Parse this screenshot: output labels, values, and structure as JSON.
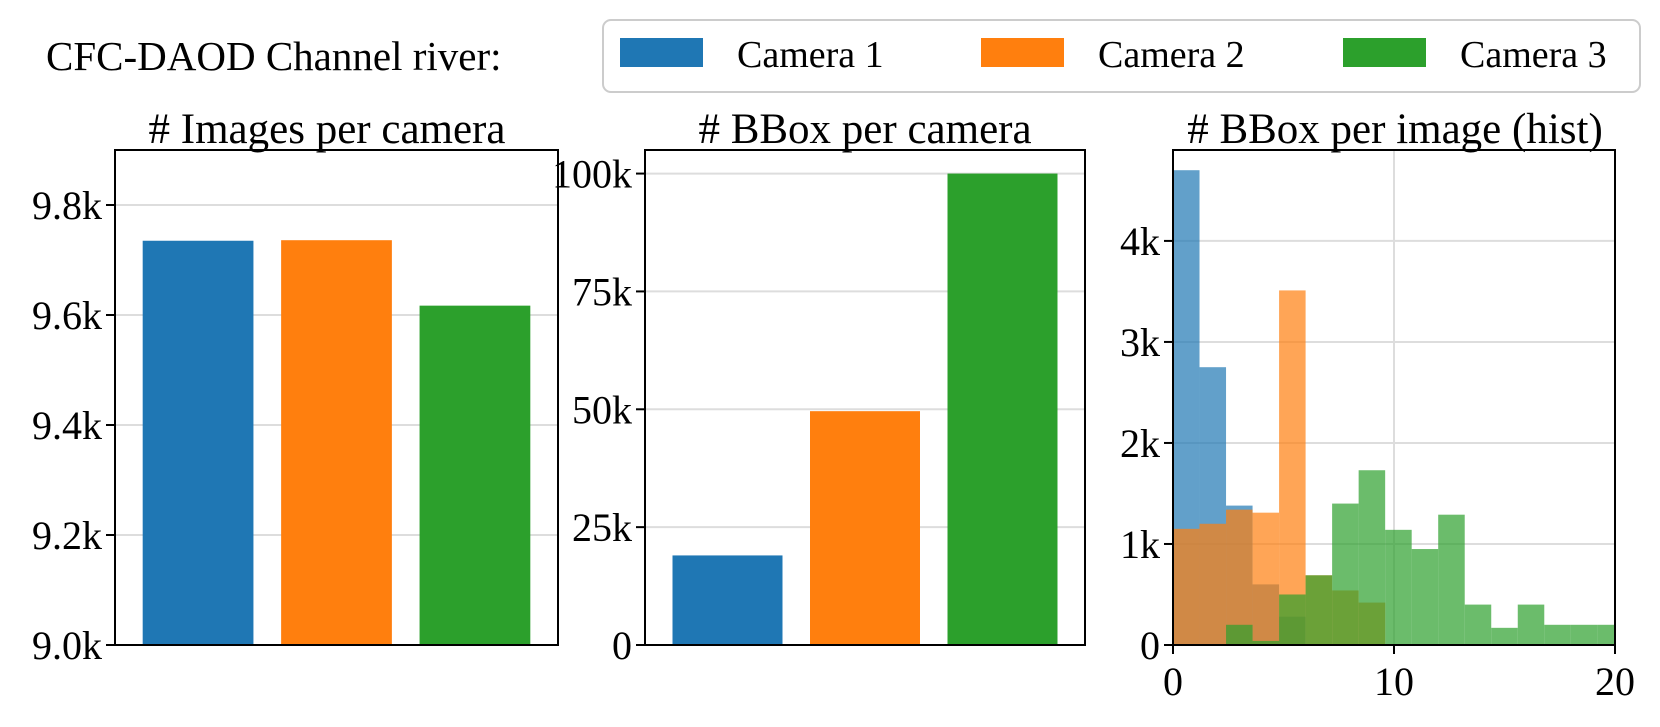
{
  "header": {
    "dataset_label": "CFC-DAOD Channel river:",
    "legend": [
      {
        "label": "Camera 1",
        "color": "#1f77b4"
      },
      {
        "label": "Camera 2",
        "color": "#ff7f0e"
      },
      {
        "label": "Camera 3",
        "color": "#2ca02c"
      }
    ]
  },
  "chart_data": [
    {
      "type": "bar",
      "title": "# Images per camera",
      "categories": [
        "Camera 1",
        "Camera 2",
        "Camera 3"
      ],
      "values": [
        9735,
        9736,
        9617
      ],
      "ylim": [
        9000,
        9900
      ],
      "yticks": [
        9000,
        9200,
        9400,
        9600,
        9800
      ],
      "ytick_labels": [
        "9.0k",
        "9.2k",
        "9.4k",
        "9.6k",
        "9.8k"
      ],
      "grid": "y",
      "colors": [
        "#1f77b4",
        "#ff7f0e",
        "#2ca02c"
      ]
    },
    {
      "type": "bar",
      "title": "# BBox per camera",
      "categories": [
        "Camera 1",
        "Camera 2",
        "Camera 3"
      ],
      "values": [
        19000,
        49600,
        100000
      ],
      "ylim": [
        0,
        105000
      ],
      "yticks": [
        0,
        25000,
        50000,
        75000,
        100000
      ],
      "ytick_labels": [
        "0",
        "25k",
        "50k",
        "75k",
        "100k"
      ],
      "grid": "y",
      "colors": [
        "#1f77b4",
        "#ff7f0e",
        "#2ca02c"
      ]
    },
    {
      "type": "histogram",
      "title": "# BBox per image (hist)",
      "xlim": [
        0,
        20
      ],
      "xticks": [
        0,
        10,
        20
      ],
      "xtick_labels": [
        "0",
        "10",
        "20"
      ],
      "ylim": [
        0,
        4900
      ],
      "yticks": [
        0,
        1000,
        2000,
        3000,
        4000
      ],
      "ytick_labels": [
        "0",
        "1k",
        "2k",
        "3k",
        "4k"
      ],
      "grid": "both",
      "opacity": 0.7,
      "series": [
        {
          "name": "Camera 1",
          "color": "#1f77b4",
          "bins": [
            {
              "x0": 0,
              "x1": 1.2,
              "count": 4700
            },
            {
              "x0": 1.2,
              "x1": 2.4,
              "count": 2750
            },
            {
              "x0": 2.4,
              "x1": 3.6,
              "count": 1380
            },
            {
              "x0": 3.6,
              "x1": 4.8,
              "count": 600
            },
            {
              "x0": 4.8,
              "x1": 6.0,
              "count": 280
            }
          ]
        },
        {
          "name": "Camera 2",
          "color": "#ff7f0e",
          "bins": [
            {
              "x0": 0,
              "x1": 1.2,
              "count": 1150
            },
            {
              "x0": 1.2,
              "x1": 2.4,
              "count": 1200
            },
            {
              "x0": 2.4,
              "x1": 3.6,
              "count": 1340
            },
            {
              "x0": 3.6,
              "x1": 4.8,
              "count": 1310
            },
            {
              "x0": 4.8,
              "x1": 6.0,
              "count": 3510
            },
            {
              "x0": 6.0,
              "x1": 7.2,
              "count": 690
            },
            {
              "x0": 7.2,
              "x1": 8.4,
              "count": 540
            },
            {
              "x0": 8.4,
              "x1": 9.6,
              "count": 420
            }
          ]
        },
        {
          "name": "Camera 3",
          "color": "#2ca02c",
          "bins": [
            {
              "x0": 2.4,
              "x1": 3.6,
              "count": 200
            },
            {
              "x0": 3.6,
              "x1": 4.8,
              "count": 40
            },
            {
              "x0": 4.8,
              "x1": 6.0,
              "count": 500
            },
            {
              "x0": 6.0,
              "x1": 7.2,
              "count": 690
            },
            {
              "x0": 7.2,
              "x1": 8.4,
              "count": 1400
            },
            {
              "x0": 8.4,
              "x1": 9.6,
              "count": 1730
            },
            {
              "x0": 9.6,
              "x1": 10.8,
              "count": 1140
            },
            {
              "x0": 10.8,
              "x1": 12.0,
              "count": 950
            },
            {
              "x0": 12.0,
              "x1": 13.2,
              "count": 1290
            },
            {
              "x0": 13.2,
              "x1": 14.4,
              "count": 400
            },
            {
              "x0": 14.4,
              "x1": 15.6,
              "count": 170
            },
            {
              "x0": 15.6,
              "x1": 16.8,
              "count": 400
            },
            {
              "x0": 16.8,
              "x1": 18.0,
              "count": 200
            },
            {
              "x0": 18.0,
              "x1": 19.2,
              "count": 200
            },
            {
              "x0": 19.2,
              "x1": 20.4,
              "count": 200
            }
          ]
        }
      ]
    }
  ]
}
